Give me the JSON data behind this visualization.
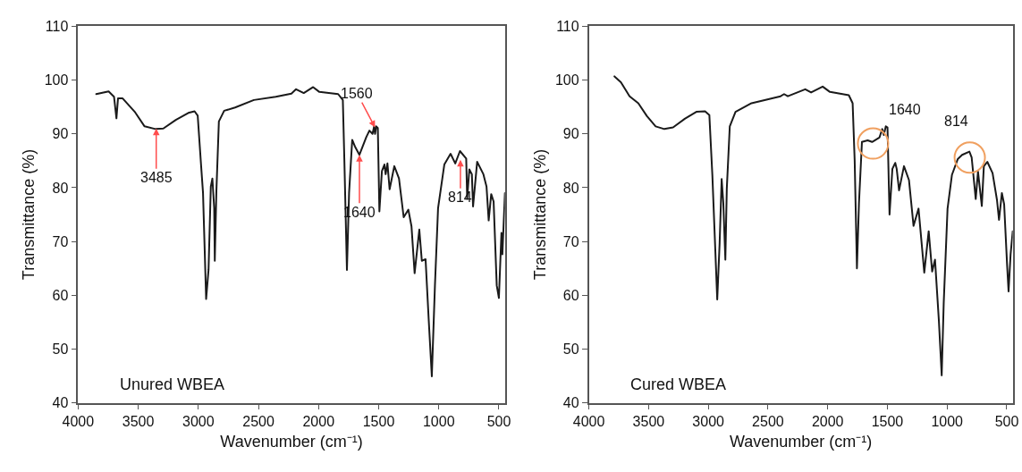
{
  "chart_data": [
    {
      "type": "line",
      "xlabel": "Wavenumber (cm⁻¹)",
      "ylabel": "Transmittance (%)",
      "xlim": [
        4000,
        450
      ],
      "ylim": [
        40,
        110
      ],
      "xticks": [
        4000,
        3500,
        3000,
        2500,
        2000,
        1500,
        1000,
        500
      ],
      "yticks": [
        40,
        50,
        60,
        70,
        80,
        90,
        100,
        110
      ],
      "series": [
        {
          "color": "#1a1a1a",
          "x": [
            3849,
            3746,
            3701,
            3681,
            3668,
            3629,
            3525,
            3447,
            3356,
            3291,
            3187,
            3083,
            3031,
            3005,
            2979,
            2961,
            2935,
            2915,
            2896,
            2883,
            2868,
            2863,
            2850,
            2829,
            2785,
            2694,
            2538,
            2356,
            2226,
            2187,
            2123,
            2045,
            1993,
            1837,
            1798,
            1785,
            1764,
            1746,
            1720,
            1694,
            1660,
            1603,
            1577,
            1551,
            1538,
            1530,
            1520,
            1507,
            1494,
            1473,
            1452,
            1442,
            1427,
            1409,
            1370,
            1331,
            1292,
            1253,
            1227,
            1201,
            1162,
            1141,
            1110,
            1084,
            1058,
            1032,
            1006,
            954,
            902,
            863,
            824,
            772,
            764,
            746,
            725,
            715,
            681,
            629,
            603,
            585,
            564,
            544,
            518,
            500,
            479,
            471,
            450
          ],
          "values": [
            97.4,
            97.9,
            96.9,
            92.9,
            96.6,
            96.6,
            94.0,
            91.4,
            90.9,
            91.0,
            92.6,
            93.9,
            94.2,
            93.4,
            84.8,
            79.1,
            59.3,
            64.7,
            80.2,
            81.7,
            76.2,
            66.4,
            79.1,
            92.3,
            94.3,
            94.9,
            96.3,
            96.9,
            97.5,
            98.3,
            97.6,
            98.7,
            97.8,
            97.4,
            96.3,
            84.8,
            64.7,
            79.1,
            88.9,
            87.5,
            86.1,
            89.4,
            90.6,
            90.0,
            91.4,
            90.0,
            91.4,
            91.1,
            75.6,
            83.1,
            84.3,
            82.5,
            84.5,
            79.7,
            84.0,
            81.7,
            74.5,
            75.9,
            72.8,
            64.1,
            72.2,
            66.4,
            66.7,
            55.5,
            44.9,
            61.8,
            76.2,
            84.3,
            86.3,
            84.5,
            86.8,
            85.4,
            77.9,
            83.4,
            82.5,
            76.5,
            84.8,
            82.5,
            80.2,
            73.9,
            78.8,
            77.4,
            61.8,
            59.5,
            71.6,
            67.6,
            79.0
          ]
        }
      ],
      "annotations": [
        {
          "text": "3485",
          "x": 3350,
          "y": 91
        },
        {
          "text": "1560",
          "x": 1530,
          "y": 91.2
        },
        {
          "text": "1640",
          "x": 1660,
          "y": 86.1
        },
        {
          "text": "814",
          "x": 820,
          "y": 85.2
        },
        "Unured WBEA"
      ]
    },
    {
      "type": "line",
      "xlabel": "Wavenumber (cm⁻¹)",
      "ylabel": "Transmittance (%)",
      "xlim": [
        4000,
        450
      ],
      "ylim": [
        40,
        110
      ],
      "xticks": [
        4000,
        3500,
        3000,
        2500,
        2000,
        1500,
        1000,
        500
      ],
      "yticks": [
        40,
        50,
        60,
        70,
        80,
        90,
        100,
        110
      ],
      "series": [
        {
          "color": "#1a1a1a",
          "x": [
            3786,
            3732,
            3659,
            3586,
            3514,
            3441,
            3368,
            3295,
            3197,
            3100,
            3027,
            2991,
            2966,
            2925,
            2905,
            2888,
            2874,
            2857,
            2845,
            2820,
            2772,
            2638,
            2395,
            2365,
            2334,
            2188,
            2139,
            2042,
            1981,
            1823,
            1791,
            1774,
            1755,
            1738,
            1713,
            1665,
            1628,
            1567,
            1543,
            1530,
            1513,
            1499,
            1482,
            1458,
            1434,
            1422,
            1402,
            1361,
            1319,
            1281,
            1239,
            1191,
            1154,
            1125,
            1101,
            1069,
            1045,
            1028,
            996,
            959,
            911,
            874,
            813,
            794,
            760,
            741,
            709,
            692,
            663,
            619,
            582,
            565,
            541,
            522,
            497,
            485,
            468,
            450
          ],
          "values": [
            100.7,
            99.6,
            97.0,
            95.7,
            93.3,
            91.4,
            90.9,
            91.2,
            92.8,
            94.1,
            94.2,
            93.5,
            82.4,
            59.2,
            69.7,
            81.6,
            77.1,
            66.6,
            79.8,
            91.4,
            94.1,
            95.7,
            97.0,
            97.4,
            97.0,
            98.3,
            97.7,
            98.8,
            97.8,
            97.2,
            95.7,
            85.1,
            65.0,
            77.1,
            88.5,
            88.8,
            88.5,
            89.3,
            90.9,
            89.8,
            91.4,
            91.2,
            75.0,
            83.5,
            84.6,
            83.5,
            79.5,
            84.0,
            81.4,
            72.9,
            76.1,
            64.2,
            71.9,
            64.4,
            66.6,
            55.4,
            45.1,
            58.6,
            76.1,
            82.4,
            85.3,
            86.1,
            86.7,
            85.6,
            77.9,
            83.0,
            76.6,
            84.0,
            84.8,
            82.7,
            77.7,
            74.0,
            79.0,
            76.9,
            65.5,
            60.7,
            67.6,
            71.9
          ]
        },
        {
          "type": "scatter",
          "marker": "circle",
          "color": "#f0a060",
          "x": [
            1620,
            810
          ],
          "values": [
            88.2,
            85.6
          ]
        }
      ],
      "annotations": [
        "1640",
        "814",
        "Cured WBEA"
      ]
    }
  ]
}
